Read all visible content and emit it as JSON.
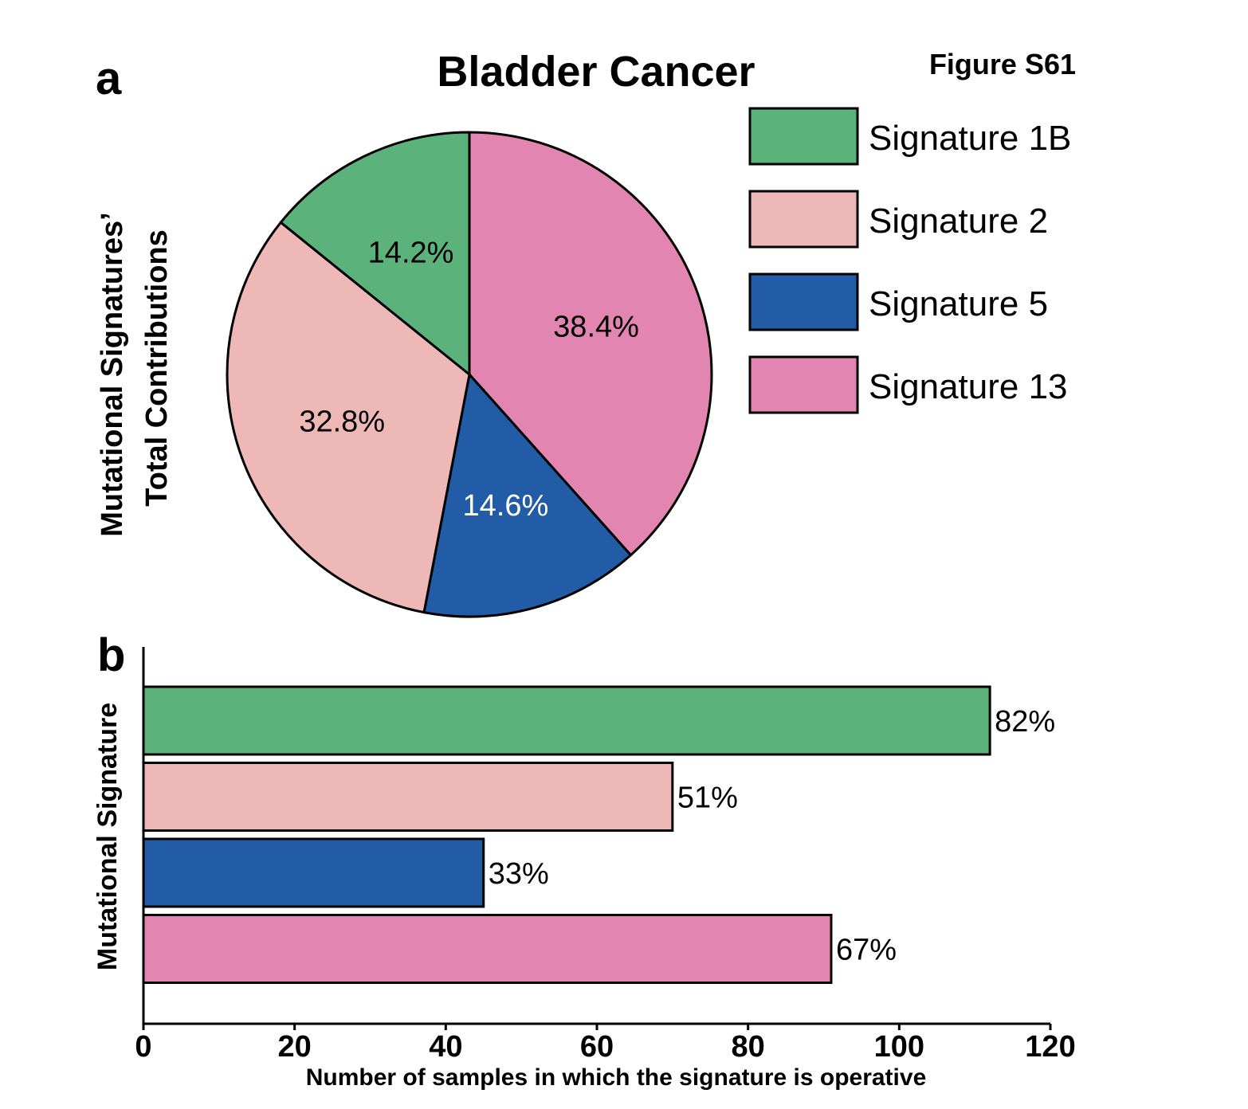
{
  "figure_label": "Figure S61",
  "panel_a_label": "a",
  "panel_b_label": "b",
  "chart_data": [
    {
      "type": "pie",
      "title": "Bladder Cancer",
      "ylabel_line1": "Mutational Signatures’",
      "ylabel_line2": "Total Contributions",
      "slices": [
        {
          "name": "Signature 1B",
          "value": 14.2,
          "label": "14.2%",
          "color": "#5bb37b",
          "text_color": "#000000"
        },
        {
          "name": "Signature 2",
          "value": 32.8,
          "label": "32.8%",
          "color": "#eeb8b6",
          "text_color": "#000000"
        },
        {
          "name": "Signature 5",
          "value": 14.6,
          "label": "14.6%",
          "color": "#235ca6",
          "text_color": "#ffffff"
        },
        {
          "name": "Signature 13",
          "value": 38.4,
          "label": "38.4%",
          "color": "#e285b0",
          "text_color": "#000000"
        }
      ],
      "legend": {
        "placement": "right",
        "entries": [
          {
            "name": "Signature 1B",
            "color": "#5bb37b"
          },
          {
            "name": "Signature 2",
            "color": "#eeb8b6"
          },
          {
            "name": "Signature 5",
            "color": "#235ca6"
          },
          {
            "name": "Signature 13",
            "color": "#e285b0"
          }
        ]
      }
    },
    {
      "type": "bar",
      "orientation": "horizontal",
      "xlabel": "Number of samples in which the signature is operative",
      "ylabel": "Mutational Signature",
      "xlim": [
        0,
        120
      ],
      "xticks": [
        0,
        20,
        40,
        60,
        80,
        100,
        120
      ],
      "categories": [
        "Signature 1B",
        "Signature 2",
        "Signature 5",
        "Signature 13"
      ],
      "values": [
        112,
        70,
        45,
        91
      ],
      "data_labels": [
        "82%",
        "51%",
        "33%",
        "67%"
      ],
      "colors": [
        "#5bb37b",
        "#eeb8b6",
        "#235ca6",
        "#e285b0"
      ]
    }
  ]
}
